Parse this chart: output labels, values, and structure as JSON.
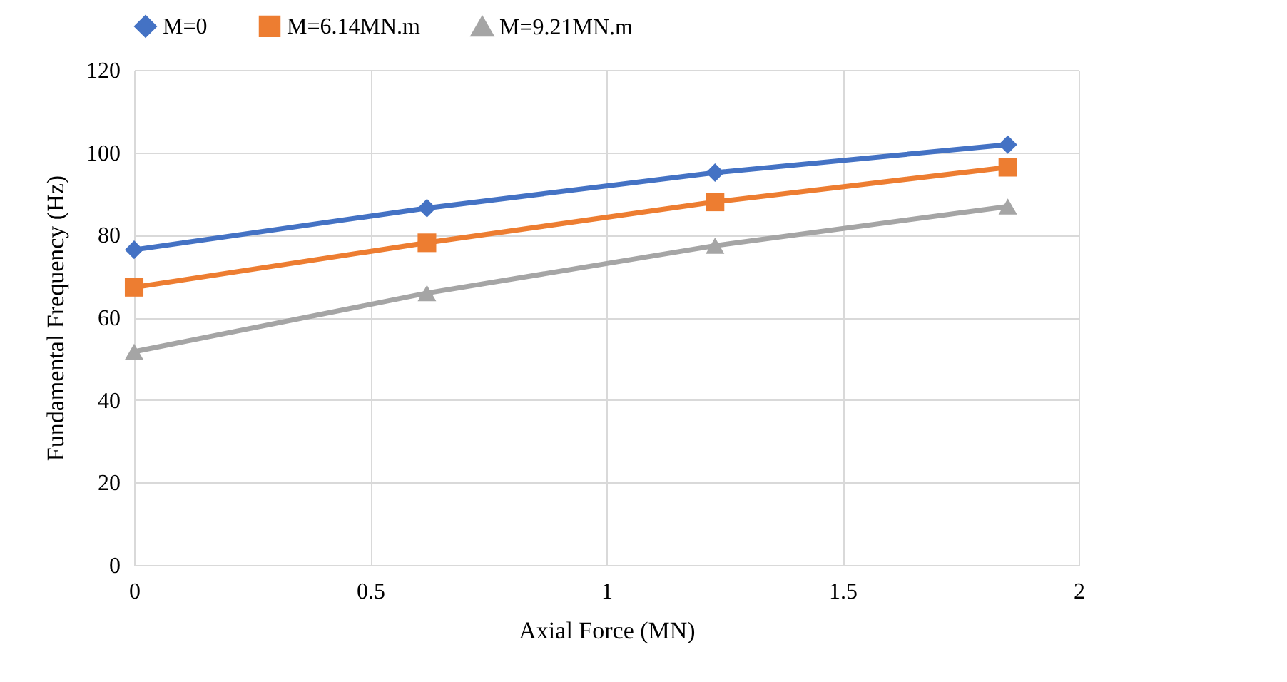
{
  "chart_data": {
    "type": "line",
    "xlabel": "Axial Force (MN)",
    "ylabel": "Fundamental Frequency (Hz)",
    "x": [
      0,
      0.62,
      1.23,
      1.85
    ],
    "series": [
      {
        "name": "M=0",
        "color": "#4472c4",
        "marker": "diamond",
        "values": [
          76.4,
          86.5,
          95.1,
          101.9
        ]
      },
      {
        "name": "M=6.14MN.m",
        "color": "#ed7d31",
        "marker": "square",
        "values": [
          67.3,
          78.1,
          88.0,
          96.4
        ]
      },
      {
        "name": "M=9.21MN.m",
        "color": "#a5a5a5",
        "marker": "triangle",
        "values": [
          51.7,
          65.9,
          77.4,
          86.9
        ]
      }
    ],
    "xlim": [
      0,
      2
    ],
    "xticks": [
      0,
      0.5,
      1,
      1.5,
      2
    ],
    "ylim": [
      0,
      120
    ],
    "yticks": [
      0,
      20,
      40,
      60,
      80,
      100,
      120
    ],
    "grid": true,
    "legend": "top",
    "line_style": "solid"
  }
}
